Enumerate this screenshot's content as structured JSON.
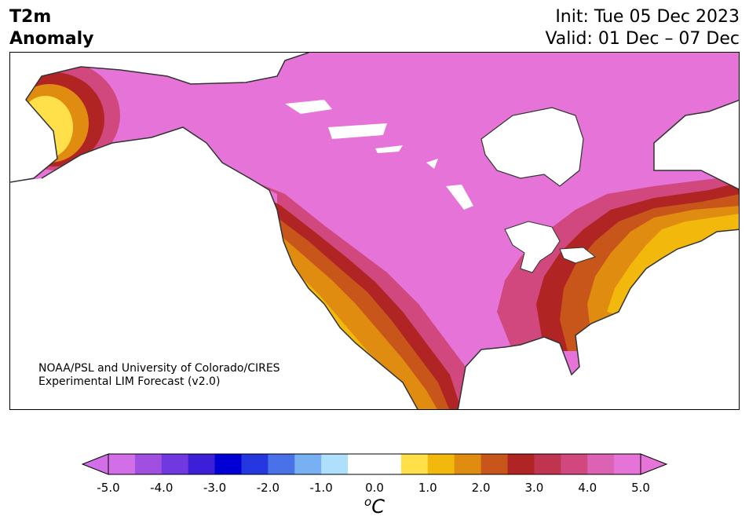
{
  "header": {
    "variable": "T2m",
    "quantity": "Anomaly",
    "init": "Init: Tue 05 Dec 2023",
    "valid": "Valid: 01 Dec – 07 Dec"
  },
  "credit": {
    "line1": "NOAA/PSL and University of Colorado/CIRES",
    "line2": "Experimental LIM Forecast (v2.0)"
  },
  "colorbar": {
    "unit_base": "C",
    "unit_sup": "o",
    "ticks": [
      "-5.0",
      "-4.0",
      "-3.0",
      "-2.0",
      "-1.0",
      "0.0",
      "1.0",
      "2.0",
      "3.0",
      "4.0",
      "5.0"
    ],
    "colors": [
      "#d16ee8",
      "#a14fe0",
      "#6f38e0",
      "#3c1fd6",
      "#0000d4",
      "#2538e0",
      "#4a72e8",
      "#78b0f4",
      "#aee0fc",
      "#ffffff",
      "#ffffff",
      "#ffe04a",
      "#f2b80c",
      "#e08c10",
      "#c8561a",
      "#b02424",
      "#c03450",
      "#d0487e",
      "#dc62b4",
      "#e674d8"
    ],
    "over_color": "#e674d8",
    "under_color": "#d16ee8"
  },
  "map": {
    "region": "North America",
    "ocean_color": "#ffffff",
    "coast_color": "#333333",
    "dominant_anomaly_color": "#e674d8"
  }
}
